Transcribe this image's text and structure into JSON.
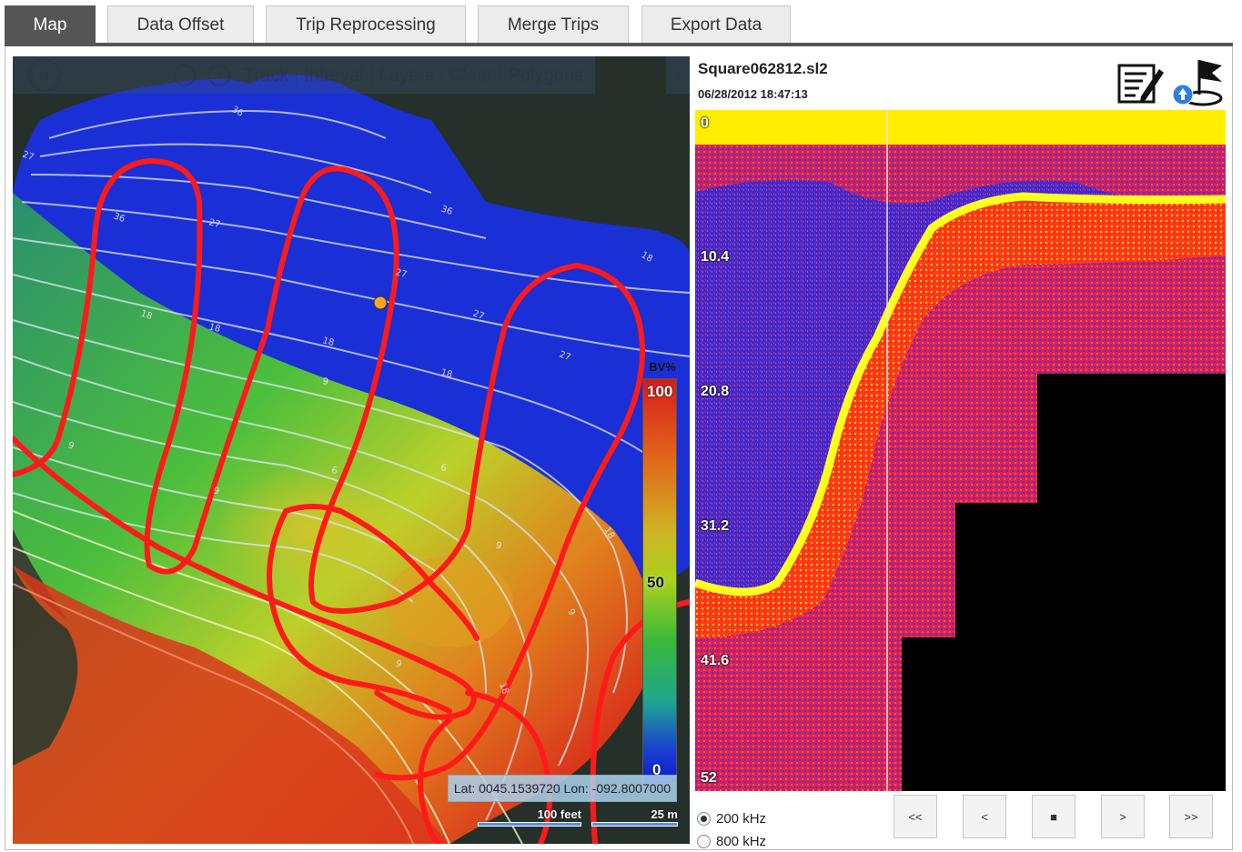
{
  "tabs": [
    {
      "label": "Map",
      "active": true
    },
    {
      "label": "Data Offset",
      "active": false
    },
    {
      "label": "Trip Reprocessing",
      "active": false
    },
    {
      "label": "Merge Trips",
      "active": false
    },
    {
      "label": "Export Data",
      "active": false
    }
  ],
  "map": {
    "compass_label": "N",
    "toolbar": {
      "zoom_out_icon": "zoom-out-icon",
      "zoom_in_icon": "zoom-in-icon",
      "items": [
        "Track",
        "Interval",
        "Layers",
        "Clear",
        "Polygons"
      ],
      "expand_icon": "chevron-right-icon"
    },
    "legend": {
      "title": "BV%",
      "max": "100",
      "mid": "50",
      "min": "0"
    },
    "coords": "Lat: 0045.1539720 Lon: -092.8007000",
    "scale_feet": "100 feet",
    "scale_meters": "25 m",
    "contour_labels": [
      "27",
      "36",
      "36",
      "27",
      "18",
      "18",
      "18",
      "27",
      "36",
      "27",
      "18",
      "9",
      "9",
      "9",
      "9",
      "18",
      "18",
      "6",
      "6",
      "9",
      "9",
      "18",
      "27"
    ],
    "colors": {
      "track": "#ff1a1a",
      "position_marker": "#f5a623",
      "deep": "#1a2fd6"
    }
  },
  "sonar": {
    "file_name": "Square062812.sl2",
    "date": "06/28/2012 18:47:13",
    "icons": [
      "edit-notes-icon",
      "flag-upload-icon"
    ],
    "depth_labels": [
      "0",
      "10.4",
      "20.8",
      "31.2",
      "41.6",
      "52"
    ],
    "frequencies": [
      {
        "label": "200 kHz",
        "selected": true
      },
      {
        "label": "800 kHz",
        "selected": false
      }
    ],
    "nav": {
      "first": "<<",
      "prev": "<",
      "stop": "■",
      "next": ">",
      "last": ">>"
    }
  }
}
